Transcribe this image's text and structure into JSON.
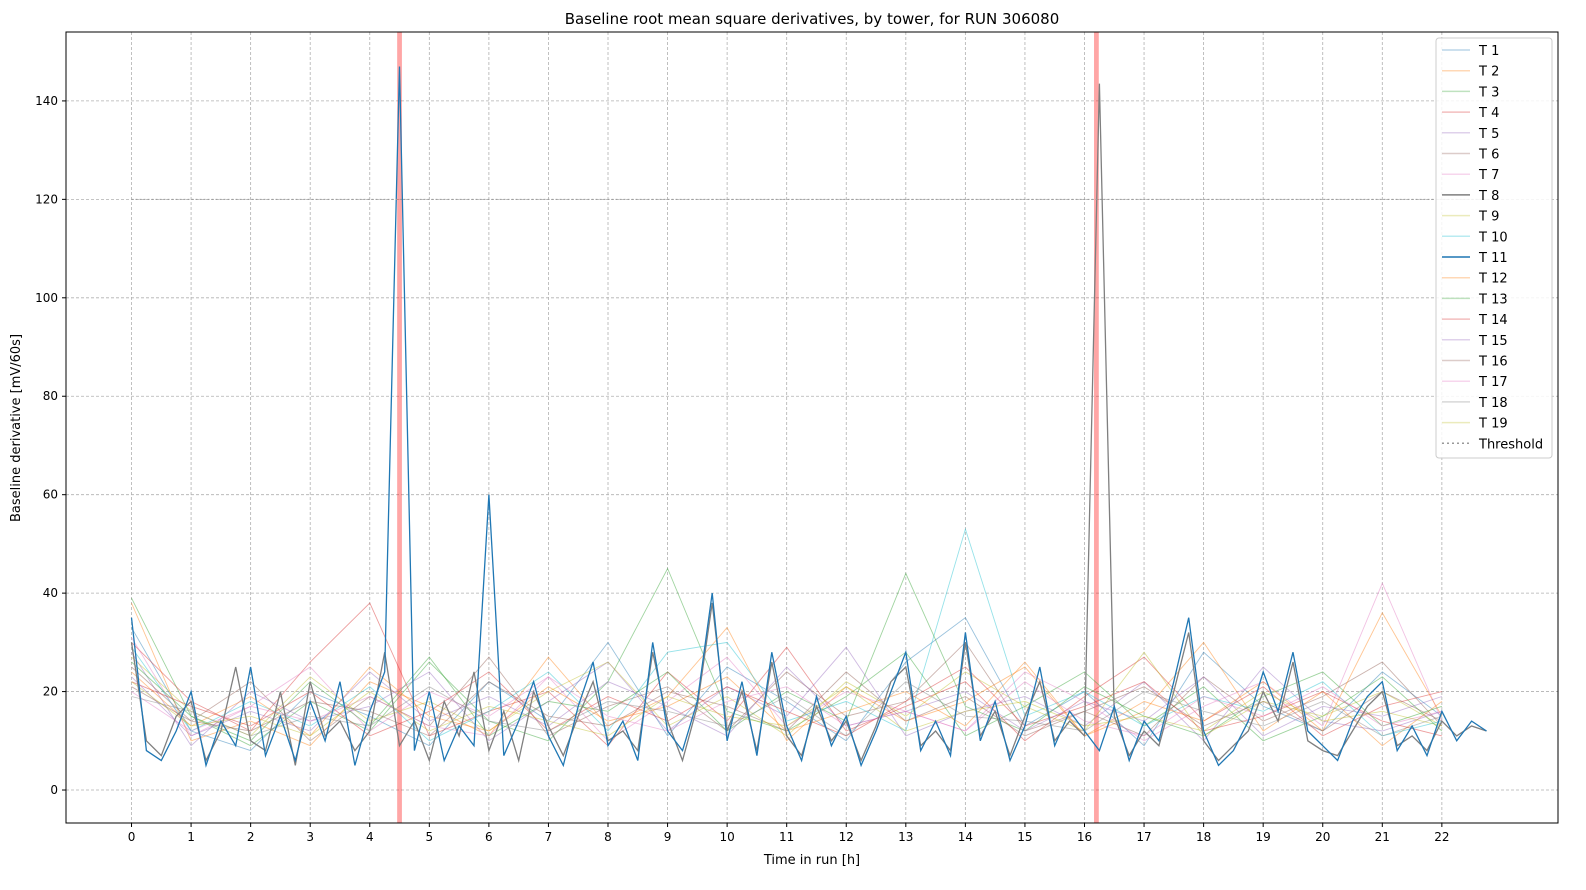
{
  "chart_data": {
    "type": "line",
    "title": "Baseline root mean square derivatives, by tower, for RUN 306080",
    "xlabel": "Time in run [h]",
    "ylabel": "Baseline derivative [mV/60s]",
    "xlim": [
      -1.1,
      23.95
    ],
    "ylim": [
      -6.7,
      154
    ],
    "xticks": [
      0,
      1,
      2,
      3,
      4,
      5,
      6,
      7,
      8,
      9,
      10,
      11,
      12,
      13,
      14,
      15,
      16,
      17,
      18,
      19,
      20,
      21,
      22
    ],
    "yticks": [
      0,
      20,
      40,
      60,
      80,
      100,
      120,
      140
    ],
    "grid": true,
    "legend_position": "top-right",
    "threshold": {
      "name": "Threshold",
      "value": 120,
      "x_range": [
        0,
        22.8
      ],
      "color": "#999999"
    },
    "highlight_bands": [
      {
        "x": 4.5,
        "width": 0.08,
        "color": "#ff0000"
      },
      {
        "x": 16.2,
        "width": 0.08,
        "color": "#ff0000"
      }
    ],
    "series": [
      {
        "name": "T 1",
        "color": "#1f77b4",
        "opacity": 0.2,
        "x_step": 1,
        "values": [
          33,
          12,
          8,
          20,
          15,
          9,
          22,
          14,
          30,
          11,
          25,
          18,
          10,
          26,
          35,
          13,
          20,
          9,
          28,
          17,
          12,
          24,
          15
        ]
      },
      {
        "name": "T 2",
        "color": "#ff7f0e",
        "opacity": 0.2,
        "x_step": 1,
        "values": [
          38,
          10,
          14,
          9,
          22,
          17,
          11,
          27,
          13,
          19,
          33,
          10,
          21,
          14,
          18,
          25,
          11,
          16,
          30,
          12,
          20,
          9,
          18
        ]
      },
      {
        "name": "T 3",
        "color": "#2ca02c",
        "opacity": 0.2,
        "x_step": 1,
        "values": [
          39,
          15,
          9,
          18,
          12,
          26,
          14,
          10,
          22,
          45,
          16,
          12,
          19,
          28,
          11,
          17,
          24,
          13,
          21,
          10,
          15,
          23,
          12
        ]
      },
      {
        "name": "T 4",
        "color": "#d62728",
        "opacity": 0.2,
        "x_step": 1,
        "values": [
          30,
          18,
          12,
          26,
          38,
          11,
          16,
          20,
          9,
          24,
          14,
          29,
          12,
          17,
          22,
          10,
          19,
          27,
          14,
          21,
          11,
          17,
          20
        ]
      },
      {
        "name": "T 5",
        "color": "#9467bd",
        "opacity": 0.2,
        "x_step": 1,
        "values": [
          28,
          9,
          20,
          14,
          17,
          24,
          10,
          18,
          26,
          12,
          21,
          15,
          29,
          11,
          16,
          19,
          13,
          22,
          10,
          25,
          14,
          12,
          16
        ]
      },
      {
        "name": "T 6",
        "color": "#8c564b",
        "opacity": 0.2,
        "x_step": 1,
        "values": [
          25,
          14,
          22,
          10,
          19,
          13,
          27,
          11,
          17,
          21,
          12,
          24,
          15,
          18,
          30,
          12,
          16,
          11,
          23,
          14,
          19,
          26,
          13
        ]
      },
      {
        "name": "T 7",
        "color": "#e377c2",
        "opacity": 0.2,
        "x_step": 1,
        "values": [
          31,
          11,
          17,
          25,
          12,
          20,
          15,
          23,
          10,
          18,
          27,
          13,
          20,
          16,
          12,
          24,
          18,
          10,
          17,
          22,
          13,
          42,
          14
        ]
      },
      {
        "name": "T 8",
        "color": "#7f7f7f",
        "opacity": 1,
        "x_step": 0.25,
        "values": [
          30,
          10,
          7,
          15,
          18,
          6,
          12,
          25,
          10,
          8,
          20,
          5,
          22,
          11,
          14,
          8,
          12,
          28,
          9,
          14,
          6,
          18,
          11,
          24,
          8,
          16,
          6,
          20,
          13,
          7,
          15,
          22,
          10,
          12,
          8,
          28,
          14,
          6,
          17,
          38,
          12,
          20,
          8,
          26,
          11,
          7,
          17,
          10,
          14,
          6,
          13,
          22,
          25,
          9,
          12,
          8,
          30,
          11,
          16,
          7,
          15,
          22,
          10,
          14,
          11,
          143.5,
          15,
          7,
          12,
          9,
          20,
          32,
          10,
          6,
          9,
          12,
          20,
          14,
          26,
          10,
          8,
          7,
          12,
          17,
          20,
          9,
          11,
          8,
          14,
          11,
          13,
          12
        ]
      },
      {
        "name": "T 9",
        "color": "#bcbd22",
        "opacity": 0.2,
        "x_step": 1,
        "values": [
          27,
          16,
          11,
          23,
          14,
          18,
          12,
          20,
          26,
          13,
          19,
          11,
          22,
          15,
          24,
          17,
          12,
          28,
          11,
          18,
          15,
          20,
          13
        ]
      },
      {
        "name": "T 10",
        "color": "#17becf",
        "opacity": 0.2,
        "x_step": 1,
        "values": [
          29,
          12,
          18,
          13,
          21,
          10,
          16,
          24,
          12,
          28,
          30,
          14,
          18,
          12,
          53,
          15,
          20,
          13,
          19,
          16,
          22,
          11,
          14
        ]
      },
      {
        "name": "T 11",
        "color": "#1f77b4",
        "opacity": 1,
        "x_step": 0.25,
        "values": [
          35,
          8,
          6,
          12,
          20,
          5,
          14,
          9,
          25,
          7,
          15,
          6,
          18,
          10,
          22,
          5,
          16,
          24,
          147,
          8,
          20,
          6,
          13,
          9,
          60,
          7,
          14,
          22,
          11,
          5,
          17,
          26,
          9,
          14,
          6,
          30,
          12,
          8,
          18,
          40,
          10,
          22,
          7,
          28,
          13,
          6,
          19,
          9,
          15,
          5,
          12,
          20,
          28,
          8,
          14,
          7,
          32,
          10,
          18,
          6,
          13,
          25,
          9,
          16,
          12,
          8,
          17,
          6,
          14,
          10,
          22,
          35,
          12,
          5,
          8,
          14,
          24,
          16,
          28,
          12,
          9,
          6,
          14,
          19,
          22,
          8,
          13,
          7,
          16,
          10,
          14,
          12
        ]
      },
      {
        "name": "T 12",
        "color": "#ff7f0e",
        "opacity": 0.2,
        "x_step": 1,
        "values": [
          24,
          13,
          19,
          11,
          25,
          15,
          12,
          21,
          14,
          17,
          23,
          12,
          16,
          20,
          13,
          26,
          11,
          18,
          14,
          22,
          12,
          36,
          15
        ]
      },
      {
        "name": "T 13",
        "color": "#2ca02c",
        "opacity": 0.2,
        "x_step": 1,
        "values": [
          26,
          15,
          10,
          22,
          13,
          27,
          11,
          18,
          16,
          24,
          12,
          20,
          14,
          44,
          17,
          12,
          21,
          15,
          11,
          19,
          24,
          13,
          17
        ]
      },
      {
        "name": "T 14",
        "color": "#d62728",
        "opacity": 0.2,
        "x_step": 1,
        "values": [
          22,
          17,
          13,
          20,
          11,
          16,
          24,
          12,
          19,
          14,
          21,
          16,
          11,
          18,
          25,
          13,
          17,
          22,
          12,
          15,
          20,
          14,
          11
        ]
      },
      {
        "name": "T 15",
        "color": "#9467bd",
        "opacity": 0.2,
        "x_step": 1,
        "values": [
          23,
          11,
          16,
          12,
          24,
          14,
          19,
          13,
          22,
          17,
          11,
          25,
          13,
          16,
          20,
          12,
          18,
          14,
          23,
          11,
          17,
          15,
          19
        ]
      },
      {
        "name": "T 16",
        "color": "#8c564b",
        "opacity": 0.2,
        "x_step": 1,
        "values": [
          21,
          14,
          12,
          18,
          16,
          11,
          22,
          15,
          13,
          20,
          17,
          12,
          24,
          14,
          19,
          11,
          16,
          21,
          13,
          18,
          12,
          20,
          14
        ]
      },
      {
        "name": "T 17",
        "color": "#e377c2",
        "opacity": 0.2,
        "x_step": 1,
        "values": [
          20,
          12,
          17,
          14,
          19,
          13,
          11,
          23,
          15,
          12,
          18,
          21,
          13,
          16,
          12,
          22,
          14,
          11,
          19,
          15,
          21,
          13,
          16
        ]
      },
      {
        "name": "T 18",
        "color": "#7f7f7f",
        "opacity": 0.2,
        "x_step": 1,
        "values": [
          19,
          16,
          11,
          15,
          13,
          21,
          14,
          12,
          18,
          16,
          13,
          19,
          11,
          22,
          15,
          14,
          12,
          20,
          16,
          13,
          18,
          11,
          15
        ]
      },
      {
        "name": "T 19",
        "color": "#bcbd22",
        "opacity": 0.2,
        "x_step": 1,
        "values": [
          22,
          13,
          15,
          11,
          20,
          12,
          17,
          14,
          11,
          19,
          15,
          13,
          21,
          12,
          16,
          18,
          13,
          15,
          12,
          20,
          14,
          16,
          13
        ]
      }
    ]
  }
}
